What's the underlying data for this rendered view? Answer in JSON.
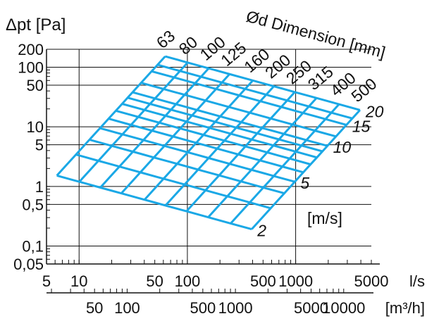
{
  "chart_data": {
    "type": "line",
    "title": "",
    "ylabel": "Δpt [Pa]",
    "xlabel_ls": "l/s",
    "xlabel_m3h": "[m³/h]",
    "diameter_title": "Ød Dimension [mm]",
    "speed_unit": "[m/s]",
    "grid": true,
    "y_scale": "log",
    "x_scale": "log",
    "ylim": [
      0.05,
      200
    ],
    "xlim_ls": [
      5,
      5000
    ],
    "y_ticks": [
      {
        "v": 200,
        "label": "200"
      },
      {
        "v": 100,
        "label": "100"
      },
      {
        "v": 50,
        "label": "50"
      },
      {
        "v": 10,
        "label": "10"
      },
      {
        "v": 5,
        "label": "5"
      },
      {
        "v": 1,
        "label": "1"
      },
      {
        "v": 0.5,
        "label": "0,5"
      },
      {
        "v": 0.1,
        "label": "0,1"
      },
      {
        "v": 0.05,
        "label": "0,05"
      }
    ],
    "x_ticks_ls": [
      {
        "v": 5,
        "label": "5"
      },
      {
        "v": 10,
        "label": "10"
      },
      {
        "v": 50,
        "label": "50"
      },
      {
        "v": 100,
        "label": "100"
      },
      {
        "v": 500,
        "label": "500"
      },
      {
        "v": 1000,
        "label": "1000"
      },
      {
        "v": 5000,
        "label": "5000"
      }
    ],
    "x_ticks_m3h": [
      {
        "v": 50,
        "label": "50"
      },
      {
        "v": 100,
        "label": "100"
      },
      {
        "v": 500,
        "label": "500"
      },
      {
        "v": 1000,
        "label": "1000"
      },
      {
        "v": 5000,
        "label": "5000"
      },
      {
        "v": 10000,
        "label": "10000"
      }
    ],
    "diameters": [
      {
        "label": "63",
        "d": 63
      },
      {
        "label": "80",
        "d": 80
      },
      {
        "label": "100",
        "d": 100
      },
      {
        "label": "125",
        "d": 125
      },
      {
        "label": "160",
        "d": 160
      },
      {
        "label": "200",
        "d": 200
      },
      {
        "label": "250",
        "d": 250
      },
      {
        "label": "315",
        "d": 315
      },
      {
        "label": "400",
        "d": 400
      },
      {
        "label": "500",
        "d": 500
      }
    ],
    "speeds": [
      {
        "label": "2",
        "v": 2
      },
      {
        "label": "5",
        "v": 5
      },
      {
        "label": "10",
        "v": 10
      },
      {
        "label": "15",
        "v": 15
      },
      {
        "label": "20",
        "v": 20
      }
    ],
    "series_color": "#1aa8e6",
    "grid_color": "#111111"
  }
}
